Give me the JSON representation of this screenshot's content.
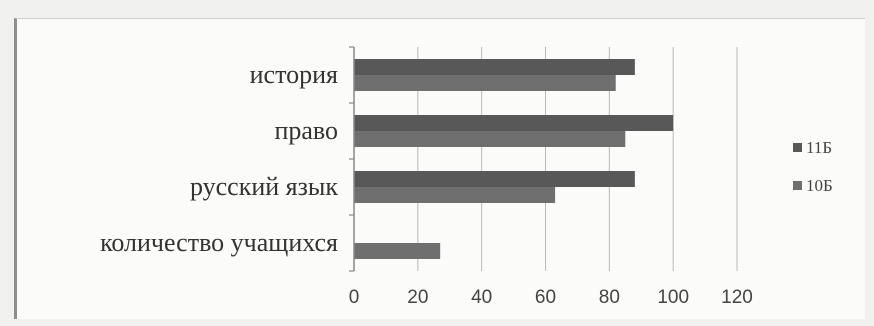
{
  "chart_data": {
    "type": "bar",
    "orientation": "horizontal",
    "categories": [
      "история",
      "право",
      "русский язык",
      "количество учащихся"
    ],
    "series": [
      {
        "name": "11Б",
        "values": [
          88,
          100,
          88,
          null
        ],
        "color": "#585858"
      },
      {
        "name": "10Б",
        "values": [
          82,
          85,
          63,
          27
        ],
        "color": "#6f6f6f"
      }
    ],
    "xlim": [
      0,
      120
    ],
    "xticks": [
      0,
      20,
      40,
      60,
      80,
      100,
      120
    ],
    "grid": true,
    "legend_position": "right"
  }
}
